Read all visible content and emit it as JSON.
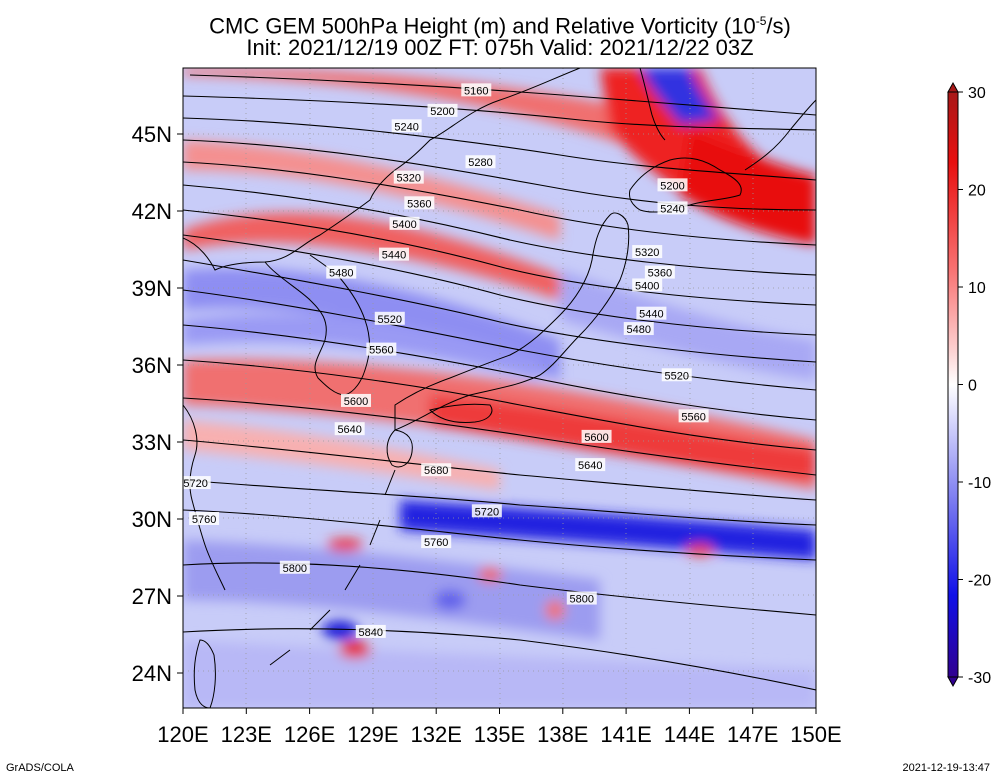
{
  "title": {
    "line1_prefix": "CMC GEM 500hPa Height (m) and Relative Vorticity (10",
    "line1_exp": "-5",
    "line1_suffix": "/s)",
    "line2": "Init: 2021/12/19 00Z  FT: 075h  Valid: 2021/12/22 03Z"
  },
  "map": {
    "lon_labels": [
      "120E",
      "123E",
      "126E",
      "129E",
      "132E",
      "135E",
      "138E",
      "141E",
      "144E",
      "147E",
      "150E"
    ],
    "lat_labels": [
      "45N",
      "42N",
      "39N",
      "36N",
      "33N",
      "30N",
      "27N",
      "24N"
    ],
    "lat_values": [
      45,
      42,
      39,
      36,
      33,
      30,
      27,
      24
    ],
    "lon_values": [
      120,
      123,
      126,
      129,
      132,
      135,
      138,
      141,
      144,
      147,
      150
    ],
    "contour_labels": [
      {
        "text": "5160",
        "lon": 133.9,
        "lat": 46.7
      },
      {
        "text": "5200",
        "lon": 132.3,
        "lat": 45.9
      },
      {
        "text": "5240",
        "lon": 130.6,
        "lat": 45.3
      },
      {
        "text": "5280",
        "lon": 134.1,
        "lat": 43.9
      },
      {
        "text": "5320",
        "lon": 130.7,
        "lat": 43.3
      },
      {
        "text": "5360",
        "lon": 131.2,
        "lat": 42.3
      },
      {
        "text": "5400",
        "lon": 130.5,
        "lat": 41.5
      },
      {
        "text": "5440",
        "lon": 130.0,
        "lat": 40.3
      },
      {
        "text": "5480",
        "lon": 127.5,
        "lat": 39.6
      },
      {
        "text": "5520",
        "lon": 129.8,
        "lat": 37.8
      },
      {
        "text": "5560",
        "lon": 129.4,
        "lat": 36.6
      },
      {
        "text": "5600",
        "lon": 128.2,
        "lat": 34.6
      },
      {
        "text": "5640",
        "lon": 127.9,
        "lat": 33.5
      },
      {
        "text": "5680",
        "lon": 132.0,
        "lat": 31.9
      },
      {
        "text": "5720",
        "lon": 120.6,
        "lat": 31.4
      },
      {
        "text": "5760",
        "lon": 121.0,
        "lat": 30.0
      },
      {
        "text": "5720",
        "lon": 134.4,
        "lat": 30.3
      },
      {
        "text": "5760",
        "lon": 132.0,
        "lat": 29.1
      },
      {
        "text": "5800",
        "lon": 125.3,
        "lat": 28.1
      },
      {
        "text": "5840",
        "lon": 128.9,
        "lat": 25.6
      },
      {
        "text": "5800",
        "lon": 138.9,
        "lat": 26.9
      },
      {
        "text": "5200",
        "lon": 143.2,
        "lat": 43.0
      },
      {
        "text": "5240",
        "lon": 143.2,
        "lat": 42.1
      },
      {
        "text": "5320",
        "lon": 142.0,
        "lat": 40.4
      },
      {
        "text": "5360",
        "lon": 142.6,
        "lat": 39.6
      },
      {
        "text": "5400",
        "lon": 142.0,
        "lat": 39.1
      },
      {
        "text": "5440",
        "lon": 142.2,
        "lat": 38.0
      },
      {
        "text": "5480",
        "lon": 141.6,
        "lat": 37.4
      },
      {
        "text": "5520",
        "lon": 143.4,
        "lat": 35.6
      },
      {
        "text": "5560",
        "lon": 144.2,
        "lat": 34.0
      },
      {
        "text": "5600",
        "lon": 139.6,
        "lat": 33.2
      },
      {
        "text": "5640",
        "lon": 139.3,
        "lat": 32.1
      }
    ]
  },
  "colorbar": {
    "tick_labels": [
      "30",
      "20",
      "10",
      "0",
      "-10",
      "-20",
      "-30"
    ],
    "tick_values": [
      30,
      20,
      10,
      0,
      -10,
      -20,
      -30
    ],
    "colors_top_to_bottom": [
      "#a81818",
      "#e81010",
      "#f87070",
      "#fcd0d0",
      "#ffffff",
      "#d8d8fc",
      "#7a7af0",
      "#1010e8",
      "#300090"
    ]
  },
  "footer": {
    "left": "GrADS/COLA",
    "right": "2021-12-19-13:47"
  },
  "colors": {
    "positive": "#e81010",
    "negative": "#1a1ae8",
    "contour": "#000000"
  }
}
